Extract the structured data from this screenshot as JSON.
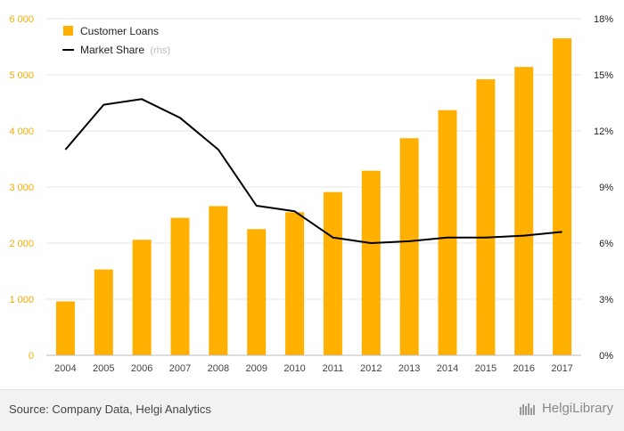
{
  "chart_data": {
    "type": "bar",
    "categories": [
      "2004",
      "2005",
      "2006",
      "2007",
      "2008",
      "2009",
      "2010",
      "2011",
      "2012",
      "2013",
      "2014",
      "2015",
      "2016",
      "2017"
    ],
    "series": [
      {
        "name": "Customer Loans",
        "type": "bar",
        "axis": "left",
        "color": "#FFB000",
        "values": [
          960,
          1530,
          2060,
          2450,
          2660,
          2250,
          2550,
          2910,
          3290,
          3870,
          4370,
          4920,
          5140,
          5650
        ]
      },
      {
        "name": "Market Share",
        "legend_suffix": "(rhs)",
        "type": "line",
        "axis": "right",
        "color": "#000000",
        "values": [
          11.0,
          13.4,
          13.7,
          12.7,
          11.0,
          8.0,
          7.7,
          6.3,
          6.0,
          6.1,
          6.3,
          6.3,
          6.4,
          6.6
        ]
      }
    ],
    "ylim_left": [
      0,
      6000
    ],
    "ylim_right": [
      0,
      18
    ],
    "left_ticks": [
      {
        "value": 0,
        "label": "0"
      },
      {
        "value": 1000,
        "label": "1 000"
      },
      {
        "value": 2000,
        "label": "2 000"
      },
      {
        "value": 3000,
        "label": "3 000"
      },
      {
        "value": 4000,
        "label": "4 000"
      },
      {
        "value": 5000,
        "label": "5 000"
      },
      {
        "value": 6000,
        "label": "6 000"
      }
    ],
    "right_ticks": [
      {
        "value": 0,
        "label": "0%"
      },
      {
        "value": 3,
        "label": "3%"
      },
      {
        "value": 6,
        "label": "6%"
      },
      {
        "value": 9,
        "label": "9%"
      },
      {
        "value": 12,
        "label": "12%"
      },
      {
        "value": 15,
        "label": "15%"
      },
      {
        "value": 18,
        "label": "18%"
      }
    ],
    "legend_position": "top-left",
    "grid": "horizontal"
  },
  "footer": {
    "source": "Source: Company Data, Helgi Analytics",
    "brand": "HelgiLibrary"
  },
  "colors": {
    "bar": "#FFB000",
    "line": "#000000",
    "grid": "#e6e6e6",
    "left_tick": "#f0ab00"
  }
}
